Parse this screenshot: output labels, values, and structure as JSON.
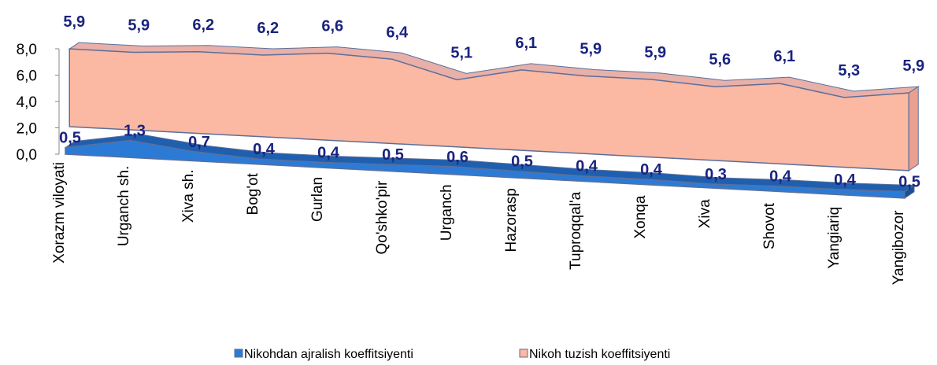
{
  "chart_data": {
    "type": "area3d",
    "categories": [
      "Xorazm viloyati",
      "Urganch sh.",
      "Xiva sh.",
      "Bog'ot",
      "Gurlan",
      "Qo'shko'pir",
      "Urganch",
      "Hazorasp",
      "Tuproqqal'a",
      "Xonqa",
      "Xiva",
      "Shovot",
      "Yangiariq",
      "Yangibozor"
    ],
    "series": [
      {
        "name": "Nikohdan ajralish koeffitsiyenti",
        "color": "#2b7bd6",
        "values": [
          0.5,
          1.3,
          0.7,
          0.4,
          0.4,
          0.5,
          0.6,
          0.5,
          0.4,
          0.4,
          0.3,
          0.4,
          0.4,
          0.5
        ],
        "value_labels": [
          "0,5",
          "1,3",
          "0,7",
          "0,4",
          "0,4",
          "0,5",
          "0,6",
          "0,5",
          "0,4",
          "0,4",
          "0,3",
          "0,4",
          "0,4",
          "0,5"
        ]
      },
      {
        "name": "Nikoh tuzish koeffitsiyenti",
        "color": "#fbb8a2",
        "values": [
          5.9,
          5.9,
          6.2,
          6.2,
          6.6,
          6.4,
          5.1,
          6.1,
          5.9,
          5.9,
          5.6,
          6.1,
          5.3,
          5.9
        ],
        "value_labels": [
          "5,9",
          "5,9",
          "6,2",
          "6,2",
          "6,6",
          "6,4",
          "5,1",
          "6,1",
          "5,9",
          "5,9",
          "5,6",
          "6,1",
          "5,3",
          "5,9"
        ]
      }
    ],
    "ylim": [
      0,
      8
    ],
    "yticks": [
      {
        "value": 0,
        "label": "0,0"
      },
      {
        "value": 2,
        "label": "2,0"
      },
      {
        "value": 4,
        "label": "4,0"
      },
      {
        "value": 6,
        "label": "6,0"
      },
      {
        "value": 8,
        "label": "8,0"
      }
    ],
    "legend": "bottom"
  }
}
